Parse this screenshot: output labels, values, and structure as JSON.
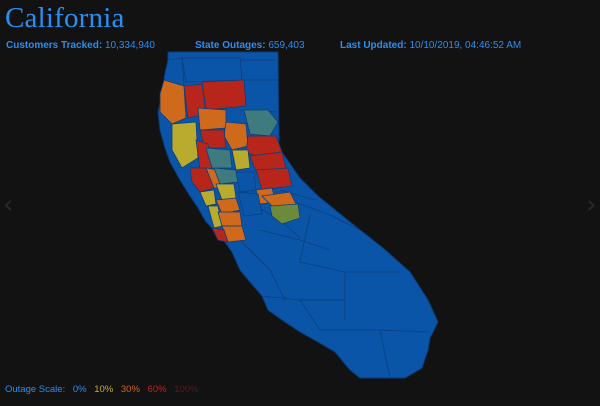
{
  "header": {
    "title": "California",
    "customers_label": "Customers Tracked:",
    "customers_value": "10,334,940",
    "outages_label": "State Outages:",
    "outages_value": "659,403",
    "updated_label": "Last Updated:",
    "updated_value": "10/10/2019, 04:46:52 AM"
  },
  "legend": {
    "label": "Outage Scale:",
    "items": [
      {
        "text": "0%",
        "color": "#2d8fe8"
      },
      {
        "text": "10%",
        "color": "#c9b02c"
      },
      {
        "text": "30%",
        "color": "#d2641e"
      },
      {
        "text": "60%",
        "color": "#c42222"
      },
      {
        "text": "100%",
        "color": "#5a1a1a"
      }
    ]
  },
  "nav": {
    "prev_icon": "chevron-left-icon",
    "next_icon": "chevron-right-icon"
  },
  "colors": {
    "background": "#121212",
    "state_fill": "#0b55a8",
    "county_border": "#0a3f7e",
    "outage_0": "#0b55a8",
    "outage_10": "#b9ab2e",
    "outage_30": "#cf6a1c",
    "outage_60": "#b8261b",
    "outage_100": "#5a1a1a",
    "outage_teal": "#3f7a7e",
    "outage_green": "#6b8a3a"
  }
}
